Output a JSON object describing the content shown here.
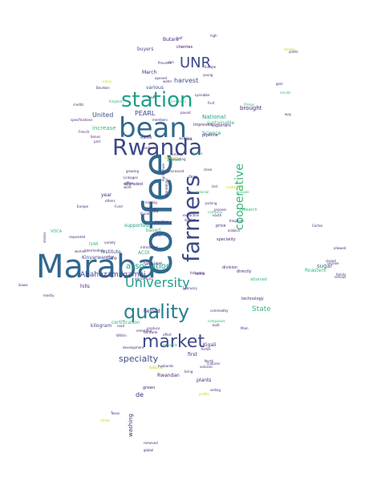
{
  "palette": {
    "purple": "#440154",
    "indigo": "#482878",
    "blue": "#3e4a89",
    "steel": "#31688e",
    "teal": "#26828e",
    "sea": "#1f9e89",
    "green": "#35b779",
    "lime": "#6ece58",
    "chartreuse": "#b5de2b",
    "yellow": "#fde725"
  },
  "words": [
    {
      "text": "Maraba",
      "color": "steel"
    },
    {
      "text": "coffee",
      "color": "steel"
    },
    {
      "text": "bean",
      "color": "steel"
    },
    {
      "text": "Rwanda",
      "color": "blue"
    },
    {
      "text": "station",
      "color": "sea"
    },
    {
      "text": "farmers",
      "color": "blue"
    },
    {
      "text": "market",
      "color": "blue"
    },
    {
      "text": "quality",
      "color": "teal"
    },
    {
      "text": "UNR",
      "color": "blue"
    },
    {
      "text": "University",
      "color": "sea"
    },
    {
      "text": "cooperative",
      "color": "green"
    },
    {
      "text": "association",
      "color": "sea"
    },
    {
      "text": "Abahuzamugambi",
      "color": "blue"
    },
    {
      "text": "specialty",
      "color": "blue"
    },
    {
      "text": "State",
      "color": "green"
    },
    {
      "text": "harvest",
      "color": "blue"
    },
    {
      "text": "PEARL",
      "color": "blue"
    },
    {
      "text": "United",
      "color": "blue"
    },
    {
      "text": "increase",
      "color": "green"
    },
    {
      "text": "National",
      "color": "sea"
    },
    {
      "text": "Butare",
      "color": "indigo"
    },
    {
      "text": "buyers",
      "color": "blue"
    },
    {
      "text": "cherries",
      "color": "purple"
    },
    {
      "text": "March",
      "color": "indigo"
    },
    {
      "text": "various",
      "color": "blue"
    },
    {
      "text": "brought",
      "color": "indigo"
    },
    {
      "text": "Science",
      "color": "sea"
    },
    {
      "text": "sustainable",
      "color": "green"
    },
    {
      "text": "supported",
      "color": "sea"
    },
    {
      "text": "ACDI",
      "color": "green"
    },
    {
      "text": "ISAR",
      "color": "green"
    },
    {
      "text": "institute",
      "color": "blue"
    },
    {
      "text": "Cafe",
      "color": "blue"
    },
    {
      "text": "Kinyarwanda",
      "color": "blue"
    },
    {
      "text": "hills",
      "color": "indigo"
    },
    {
      "text": "kilogram",
      "color": "blue"
    },
    {
      "text": "certification",
      "color": "green"
    },
    {
      "text": "helped",
      "color": "indigo"
    },
    {
      "text": "Kigali",
      "color": "indigo"
    },
    {
      "text": "first",
      "color": "indigo"
    },
    {
      "text": "sugar",
      "color": "steel"
    },
    {
      "text": "Roasters",
      "color": "green"
    },
    {
      "text": "Rwandan",
      "color": "indigo"
    },
    {
      "text": "washing",
      "color": "indigo"
    },
    {
      "text": "plants",
      "color": "indigo"
    },
    {
      "text": "grown",
      "color": "indigo"
    },
    {
      "text": "de",
      "color": "indigo"
    },
    {
      "text": "sauce",
      "color": "chartreuse"
    },
    {
      "text": "year",
      "color": "indigo"
    },
    {
      "text": "du",
      "color": "indigo"
    },
    {
      "text": "based",
      "color": "green"
    },
    {
      "text": "upgraded",
      "color": "indigo"
    },
    {
      "text": "buy",
      "color": "indigo"
    },
    {
      "text": "VOCA",
      "color": "green"
    },
    {
      "text": "research",
      "color": "green"
    },
    {
      "text": "speciality",
      "color": "indigo"
    },
    {
      "text": "division",
      "color": "indigo"
    },
    {
      "text": "directly",
      "color": "indigo"
    },
    {
      "text": "attained",
      "color": "green"
    },
    {
      "text": "technology",
      "color": "indigo"
    },
    {
      "text": "price",
      "color": "indigo"
    },
    {
      "text": "improved",
      "color": "indigo"
    },
    {
      "text": "exporters",
      "color": "indigo"
    },
    {
      "text": "pipeline",
      "color": "indigo"
    },
    {
      "text": "opened",
      "color": "indigo"
    },
    {
      "text": "water",
      "color": "indigo"
    },
    {
      "text": "specifications",
      "color": "indigo"
    },
    {
      "text": "credits",
      "color": "indigo"
    },
    {
      "text": "French",
      "color": "indigo"
    },
    {
      "text": "bonus",
      "color": "indigo"
    },
    {
      "text": "part",
      "color": "indigo"
    },
    {
      "text": "started",
      "color": "indigo"
    },
    {
      "text": "working",
      "color": "indigo"
    },
    {
      "text": "tools",
      "color": "indigo"
    },
    {
      "text": "growing",
      "color": "indigo"
    },
    {
      "text": "work",
      "color": "indigo"
    },
    {
      "text": "found",
      "color": "indigo"
    },
    {
      "text": "trial",
      "color": "indigo"
    },
    {
      "text": "making",
      "color": "indigo"
    },
    {
      "text": "Europe",
      "color": "indigo"
    },
    {
      "text": "picking",
      "color": "indigo"
    },
    {
      "text": "close",
      "color": "indigo"
    },
    {
      "text": "lost",
      "color": "indigo"
    },
    {
      "text": "colonial",
      "color": "green"
    },
    {
      "text": "arabica",
      "color": "indigo"
    },
    {
      "text": "closed",
      "color": "indigo"
    },
    {
      "text": "receive",
      "color": "indigo"
    },
    {
      "text": "serious",
      "color": "indigo"
    },
    {
      "text": "family",
      "color": "indigo"
    },
    {
      "text": "intermediary",
      "color": "indigo"
    },
    {
      "text": "agricultural",
      "color": "indigo"
    },
    {
      "text": "road",
      "color": "indigo"
    },
    {
      "text": "development",
      "color": "indigo"
    },
    {
      "text": "husbands",
      "color": "indigo"
    },
    {
      "text": "bring",
      "color": "indigo"
    },
    {
      "text": "fertile",
      "color": "indigo"
    },
    {
      "text": "volcanic",
      "color": "indigo"
    },
    {
      "text": "cultures",
      "color": "indigo"
    },
    {
      "text": "profits",
      "color": "chartreuse"
    },
    {
      "text": "removed",
      "color": "indigo"
    },
    {
      "text": "global",
      "color": "indigo"
    },
    {
      "text": "built",
      "color": "indigo"
    },
    {
      "text": "Texas",
      "color": "indigo"
    },
    {
      "text": "timed",
      "color": "chartreuse"
    },
    {
      "text": "selling",
      "color": "indigo"
    },
    {
      "text": "requested",
      "color": "indigo"
    },
    {
      "text": "strains",
      "color": "indigo"
    },
    {
      "text": "mostly",
      "color": "indigo"
    },
    {
      "text": "ikawa",
      "color": "indigo"
    },
    {
      "text": "Fund",
      "color": "indigo"
    },
    {
      "text": "others",
      "color": "indigo"
    },
    {
      "text": "machine",
      "color": "indigo"
    },
    {
      "text": "Linkages",
      "color": "indigo"
    },
    {
      "text": "office",
      "color": "indigo"
    },
    {
      "text": "pound",
      "color": "indigo"
    },
    {
      "text": "fruit",
      "color": "indigo"
    },
    {
      "text": "young",
      "color": "indigo"
    },
    {
      "text": "Province",
      "color": "indigo"
    },
    {
      "text": "skin",
      "color": "indigo"
    },
    {
      "text": "beer",
      "color": "indigo"
    },
    {
      "text": "tonnes",
      "color": "chartreuse"
    },
    {
      "text": "yields",
      "color": "indigo"
    },
    {
      "text": "goal",
      "color": "indigo"
    },
    {
      "text": "results",
      "color": "green"
    },
    {
      "text": "fillings",
      "color": "green"
    },
    {
      "text": "Lyarubbe",
      "color": "indigo"
    },
    {
      "text": "fertilizers",
      "color": "green"
    },
    {
      "text": "members",
      "color": "indigo"
    },
    {
      "text": "people",
      "color": "green"
    },
    {
      "text": "traditional",
      "color": "chartreuse"
    },
    {
      "text": "business",
      "color": "green"
    },
    {
      "text": "Coffee",
      "color": "green"
    },
    {
      "text": "south",
      "color": "indigo"
    },
    {
      "text": "Kingdom",
      "color": "indigo"
    },
    {
      "text": "district",
      "color": "indigo"
    },
    {
      "text": "process",
      "color": "indigo"
    },
    {
      "text": "company",
      "color": "green"
    },
    {
      "text": "extraction",
      "color": "indigo"
    },
    {
      "text": "companies",
      "color": "green"
    },
    {
      "text": "commodity",
      "color": "indigo"
    },
    {
      "text": "February",
      "color": "indigo"
    },
    {
      "text": "Main",
      "color": "indigo"
    },
    {
      "text": "tackle",
      "color": "indigo"
    },
    {
      "text": "North",
      "color": "indigo"
    },
    {
      "text": "genocide",
      "color": "green"
    },
    {
      "text": "variety",
      "color": "indigo"
    },
    {
      "text": "women",
      "color": "indigo"
    },
    {
      "text": "handpicked",
      "color": "indigo"
    },
    {
      "text": "introduced",
      "color": "indigo"
    },
    {
      "text": "following",
      "color": "indigo"
    },
    {
      "text": "brand",
      "color": "indigo"
    },
    {
      "text": "Within",
      "color": "indigo"
    },
    {
      "text": "emerging",
      "color": "indigo"
    },
    {
      "text": "effort",
      "color": "indigo"
    },
    {
      "text": "produce",
      "color": "indigo"
    },
    {
      "text": "fairtrade",
      "color": "indigo"
    },
    {
      "text": "roasted",
      "color": "indigo"
    },
    {
      "text": "plantations",
      "color": "indigo"
    },
    {
      "text": "Agriculture",
      "color": "indigo"
    },
    {
      "text": "assisting",
      "color": "indigo"
    },
    {
      "text": "however",
      "color": "chartreuse"
    },
    {
      "text": "entities",
      "color": "indigo"
    },
    {
      "text": "processed",
      "color": "indigo"
    },
    {
      "text": "high",
      "color": "indigo"
    },
    {
      "text": "half",
      "color": "indigo"
    },
    {
      "text": "Europe",
      "color": "indigo"
    },
    {
      "text": "many",
      "color": "chartreuse"
    },
    {
      "text": "Bourbon",
      "color": "indigo"
    },
    {
      "text": "Kingdom",
      "color": "green"
    },
    {
      "text": "way",
      "color": "indigo"
    },
    {
      "text": "Cortex",
      "color": "indigo"
    },
    {
      "text": "allowed",
      "color": "indigo"
    },
    {
      "text": "started",
      "color": "green"
    },
    {
      "text": "enhancing",
      "color": "indigo"
    }
  ]
}
